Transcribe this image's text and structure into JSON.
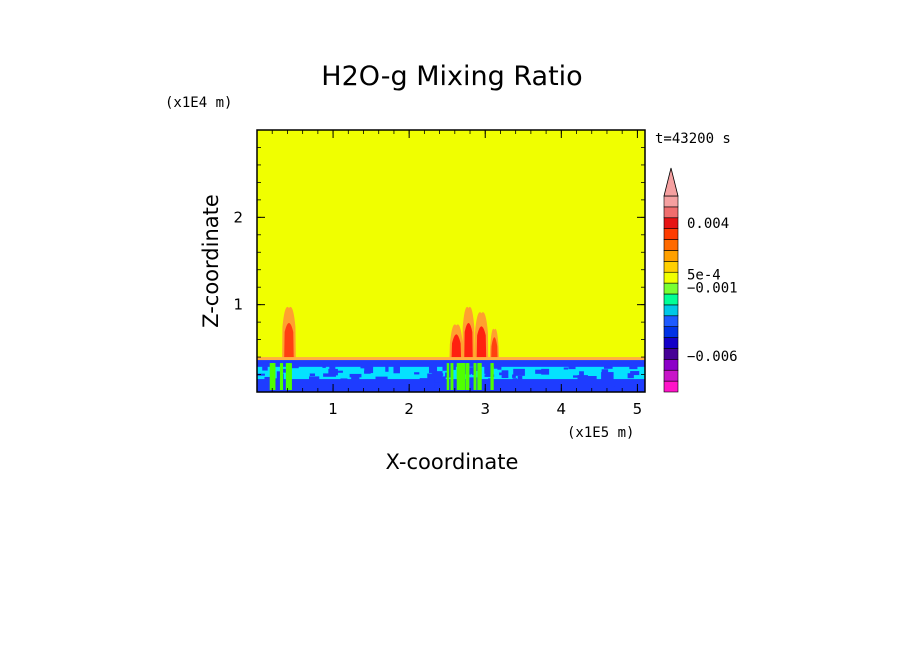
{
  "chart_data": {
    "type": "heatmap",
    "title": "H2O-g Mixing Ratio",
    "xlabel": "X-coordinate",
    "ylabel": "Z-coordinate",
    "x_scale_label": "(x1E5 m)",
    "y_scale_label": "(x1E4 m)",
    "time_label": "t=43200 s",
    "xlim": [
      0,
      5.1
    ],
    "ylim": [
      0,
      3.0
    ],
    "x_ticks": [
      {
        "value": 1,
        "label": "1"
      },
      {
        "value": 2,
        "label": "2"
      },
      {
        "value": 3,
        "label": "3"
      },
      {
        "value": 4,
        "label": "4"
      },
      {
        "value": 5,
        "label": "5"
      }
    ],
    "y_ticks": [
      {
        "value": 1,
        "label": "1"
      },
      {
        "value": 2,
        "label": "2"
      }
    ],
    "background_level_color": "#f0ff00",
    "boundary_layer": {
      "top": 0.4,
      "base_color": "#1e3cff",
      "mid_color": "#00ffff",
      "low_color": "#50ff00"
    },
    "plumes": [
      {
        "x": 0.42,
        "width": 0.18,
        "top": 1.03,
        "color_outer": "#ffa030",
        "color_inner": "#ff4010"
      },
      {
        "x": 2.62,
        "width": 0.18,
        "top": 0.83,
        "color_outer": "#ffa030",
        "color_inner": "#ff2010"
      },
      {
        "x": 2.78,
        "width": 0.16,
        "top": 1.03,
        "color_outer": "#ffa030",
        "color_inner": "#ff2010"
      },
      {
        "x": 2.95,
        "width": 0.18,
        "top": 0.97,
        "color_outer": "#ffa030",
        "color_inner": "#ff2010"
      },
      {
        "x": 3.12,
        "width": 0.12,
        "top": 0.78,
        "color_outer": "#ffa030",
        "color_inner": "#ff4010"
      }
    ],
    "colorbar": {
      "levels": [
        "#ff14c8",
        "#c814c8",
        "#8c00c8",
        "#460096",
        "#1400c8",
        "#0032e6",
        "#1e5aff",
        "#00c8e6",
        "#00ff96",
        "#78ff32",
        "#f0ff00",
        "#ffd000",
        "#ffa000",
        "#ff6a00",
        "#ff3c00",
        "#e61414",
        "#f06e6e",
        "#f5a0a0"
      ],
      "labels": [
        {
          "level": 15.5,
          "text": "0.004"
        },
        {
          "level": 10.8,
          "text": "5e-4"
        },
        {
          "level": 9.6,
          "text": "−0.001"
        },
        {
          "level": 3.3,
          "text": "−0.006"
        }
      ]
    }
  }
}
